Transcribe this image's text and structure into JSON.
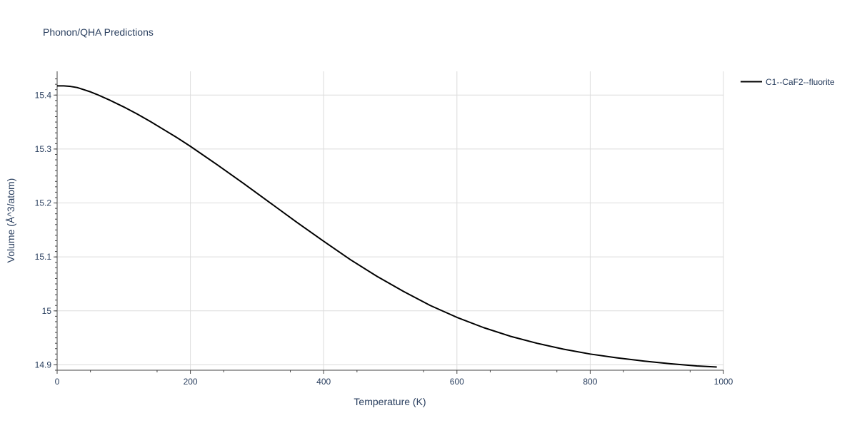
{
  "chart_data": {
    "type": "line",
    "title": "Phonon/QHA Predictions",
    "xlabel": "Temperature (K)",
    "ylabel": "Volume (Å^3/atom)",
    "xlim": [
      0,
      1000
    ],
    "ylim": [
      14.89,
      15.444
    ],
    "x_ticks": [
      0,
      200,
      400,
      600,
      800,
      1000
    ],
    "x_tick_labels": [
      "0",
      "200",
      "400",
      "600",
      "800",
      "1000"
    ],
    "y_ticks": [
      14.9,
      15.0,
      15.1,
      15.2,
      15.3,
      15.4
    ],
    "y_tick_labels": [
      "14.9",
      "15",
      "15.1",
      "15.2",
      "15.3",
      "15.4"
    ],
    "grid": true,
    "legend_position": "top-right",
    "series": [
      {
        "name": "C1--CaF2--fluorite",
        "color": "#000000",
        "x": [
          0,
          10,
          20,
          30,
          40,
          50,
          60,
          80,
          100,
          120,
          140,
          160,
          180,
          200,
          240,
          280,
          320,
          360,
          400,
          440,
          480,
          520,
          560,
          600,
          640,
          680,
          720,
          760,
          800,
          840,
          880,
          920,
          960,
          990
        ],
        "y": [
          15.417,
          15.417,
          15.416,
          15.414,
          15.41,
          15.406,
          15.401,
          15.39,
          15.378,
          15.365,
          15.351,
          15.336,
          15.321,
          15.305,
          15.271,
          15.236,
          15.2,
          15.164,
          15.129,
          15.095,
          15.064,
          15.036,
          15.01,
          14.988,
          14.969,
          14.953,
          14.94,
          14.929,
          14.92,
          14.913,
          14.907,
          14.902,
          14.898,
          14.896
        ]
      }
    ]
  }
}
